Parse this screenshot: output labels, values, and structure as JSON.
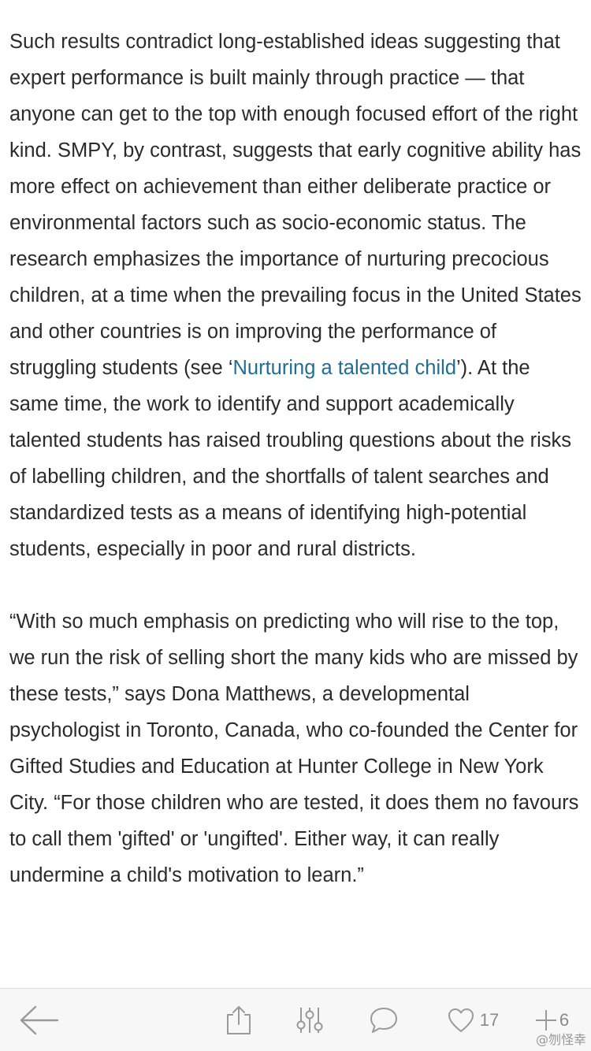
{
  "article": {
    "paragraph1": {
      "before_link": "Such results contradict long-established ideas suggesting that expert performance is built mainly through practice — that anyone can get to the top with enough focused effort of the right kind. SMPY, by contrast, suggests that early cognitive ability has more effect on achievement than either deliberate practice or environmental factors such as socio-economic status. The research emphasizes the importance of nurturing precocious children, at a time when the prevailing focus in the United States and other countries is on improving the performance of struggling students (see ‘",
      "link_text": "Nurturing a talented child",
      "after_link": "’). At the same time, the work to identify and support academically talented students has raised troubling questions about the risks of labelling children, and the shortfalls of talent searches and standardized tests as a means of identifying high-potential students, especially in poor and rural districts."
    },
    "paragraph2": "“With so much emphasis on predicting who will rise to the top, we run the risk of selling short the many kids who are missed by these tests,” says Dona Matthews, a developmental psychologist in Toronto, Canada, who co-founded the Center for Gifted Studies and Education at Hunter College in New York City. “For those children who are tested, it does them no favours to call them 'gifted' or 'ungifted'. Either way, it can really undermine a child's motivation to learn.”"
  },
  "toolbar": {
    "icons": {
      "back": "back-arrow-icon",
      "share": "share-icon",
      "adjust": "sliders-icon",
      "comment": "comment-bubble-icon",
      "like": "heart-icon",
      "add": "plus-icon"
    },
    "like_count": "17",
    "add_count": "6",
    "icon_color": "#9a9a9a"
  },
  "watermark": "@刎怪幸"
}
